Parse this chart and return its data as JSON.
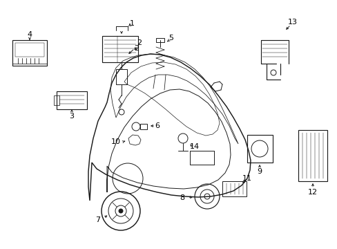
{
  "background_color": "#ffffff",
  "fig_width": 4.89,
  "fig_height": 3.6,
  "dpi": 100,
  "line_color": "#1a1a1a",
  "text_color": "#000000",
  "label_fontsize": 8.0,
  "lw": 0.7
}
